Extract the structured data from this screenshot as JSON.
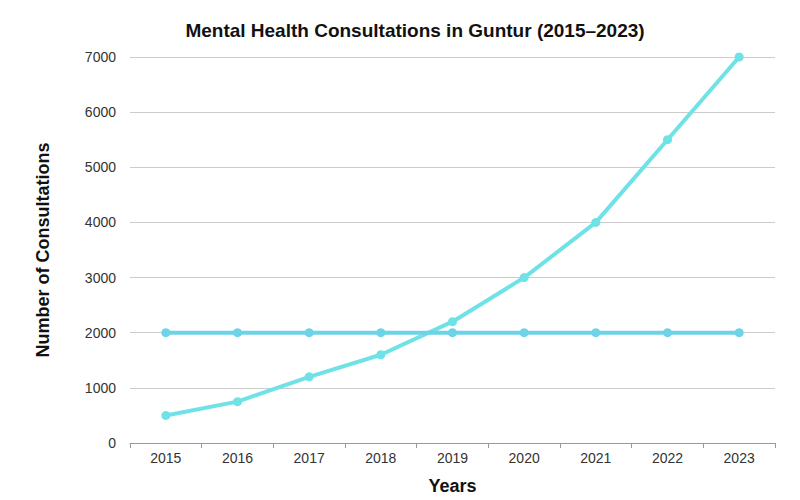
{
  "chart_data": {
    "type": "line",
    "title": "Mental Health Consultations in Guntur (2015–2023)",
    "x_label": "Years",
    "y_label": "Number of Consultations",
    "categories": [
      "2015",
      "2016",
      "2017",
      "2018",
      "2019",
      "2020",
      "2021",
      "2022",
      "2023"
    ],
    "series": [
      {
        "color": "#6ee2e6",
        "values": [
          500,
          750,
          1200,
          1600,
          2200,
          3000,
          4000,
          5500,
          7000
        ]
      },
      {
        "color": "#6cd3e8",
        "values": [
          2000,
          2000,
          2000,
          2000,
          2000,
          2000,
          2000,
          2000,
          2000
        ]
      }
    ],
    "ylim": [
      0,
      7000
    ],
    "yticks": [
      0,
      1000,
      2000,
      3000,
      4000,
      5000,
      6000,
      7000
    ],
    "grid": true,
    "marker": "circle",
    "line_style": "solid"
  }
}
